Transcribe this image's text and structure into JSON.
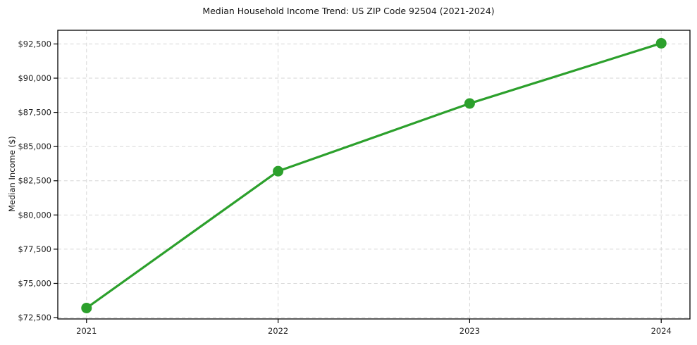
{
  "chart_data": {
    "type": "line",
    "title": "Median Household Income Trend: US ZIP Code 92504 (2021-2024)",
    "xlabel": "",
    "ylabel": "Median Income ($)",
    "x": [
      2021,
      2022,
      2023,
      2024
    ],
    "x_tick_labels": [
      "2021",
      "2022",
      "2023",
      "2024"
    ],
    "series": [
      {
        "name": "median-household-income",
        "values": [
          73200,
          83200,
          88150,
          92550
        ]
      }
    ],
    "y_ticks": [
      72500,
      75000,
      77500,
      80000,
      82500,
      85000,
      87500,
      90000,
      92500
    ],
    "y_tick_labels": [
      "$72,500",
      "$75,000",
      "$77,500",
      "$80,000",
      "$82,500",
      "$85,000",
      "$87,500",
      "$90,000",
      "$92,500"
    ],
    "ylim": [
      72400,
      93500
    ],
    "xlim": [
      2020.85,
      2024.15
    ],
    "grid": true,
    "grid_line_style": "dashed",
    "legend_position": "none",
    "line_color": "#2ca02c",
    "marker_style": "circle",
    "background_color": "#ffffff"
  }
}
